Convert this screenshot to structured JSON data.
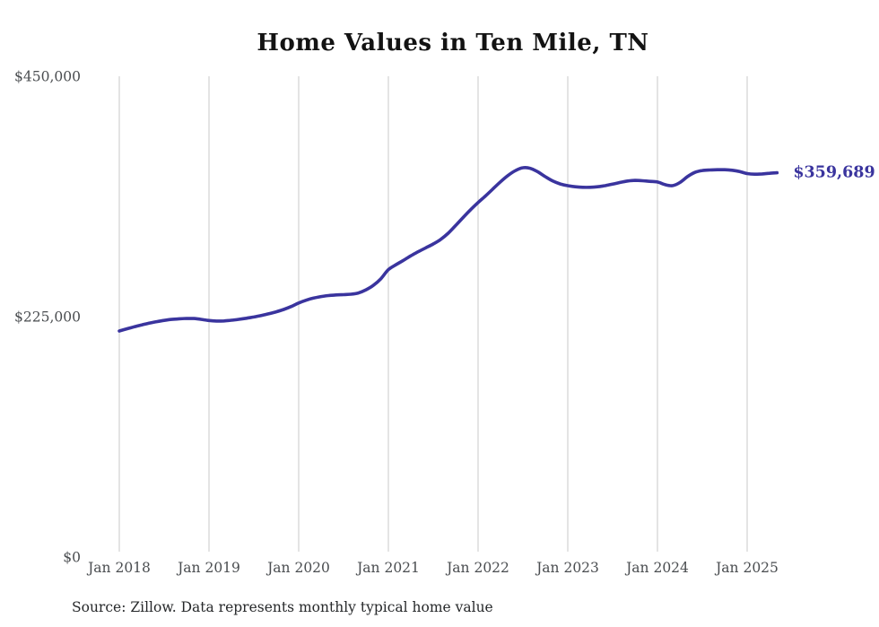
{
  "chart_data": {
    "type": "line",
    "title": "Home Values in Ten Mile, TN",
    "source": "Source: Zillow. Data represents monthly typical home value",
    "x_start": "Jan 2018",
    "frequency": "monthly",
    "x_ticks": [
      "Jan 2018",
      "Jan 2019",
      "Jan 2020",
      "Jan 2021",
      "Jan 2022",
      "Jan 2023",
      "Jan 2024",
      "Jan 2025"
    ],
    "y_ticks": [
      {
        "label": "$450,000",
        "value": 450000
      },
      {
        "label": "$225,000",
        "value": 225000
      },
      {
        "label": "$0",
        "value": 0
      }
    ],
    "ylim": [
      0,
      450000
    ],
    "grid": "vertical-only",
    "legend": "none",
    "series": [
      {
        "name": "Typical home value",
        "color": "#3a349e",
        "end_label": "$359,689",
        "end_value": 359689,
        "values": [
          211600,
          213600,
          215500,
          217300,
          218900,
          220300,
          221500,
          222400,
          223000,
          223300,
          223200,
          222400,
          221400,
          220900,
          221000,
          221600,
          222500,
          223500,
          224700,
          226100,
          227700,
          229500,
          231700,
          234500,
          237800,
          240400,
          242400,
          243800,
          244700,
          245300,
          245600,
          246000,
          247200,
          250100,
          254300,
          260500,
          269000,
          273500,
          277600,
          281900,
          285800,
          289400,
          293000,
          297300,
          303100,
          310300,
          317800,
          325100,
          331800,
          338000,
          344600,
          351200,
          357100,
          361700,
          364400,
          363800,
          360500,
          356000,
          351900,
          349200,
          347600,
          346600,
          346100,
          346100,
          346600,
          347600,
          349000,
          350600,
          351900,
          352500,
          352200,
          351600,
          351000,
          348600,
          347600,
          350500,
          356000,
          360000,
          361800,
          362300,
          362500,
          362500,
          362000,
          360800,
          358900,
          358300,
          358600,
          359200,
          359689
        ]
      }
    ]
  },
  "colors": {
    "line": "#3a349e",
    "grid": "#c9c9c9",
    "axis_text": "#4a4d50",
    "title_text": "#131313",
    "source_text": "#26282a",
    "end_label": "#3a349e",
    "background": "#ffffff"
  }
}
